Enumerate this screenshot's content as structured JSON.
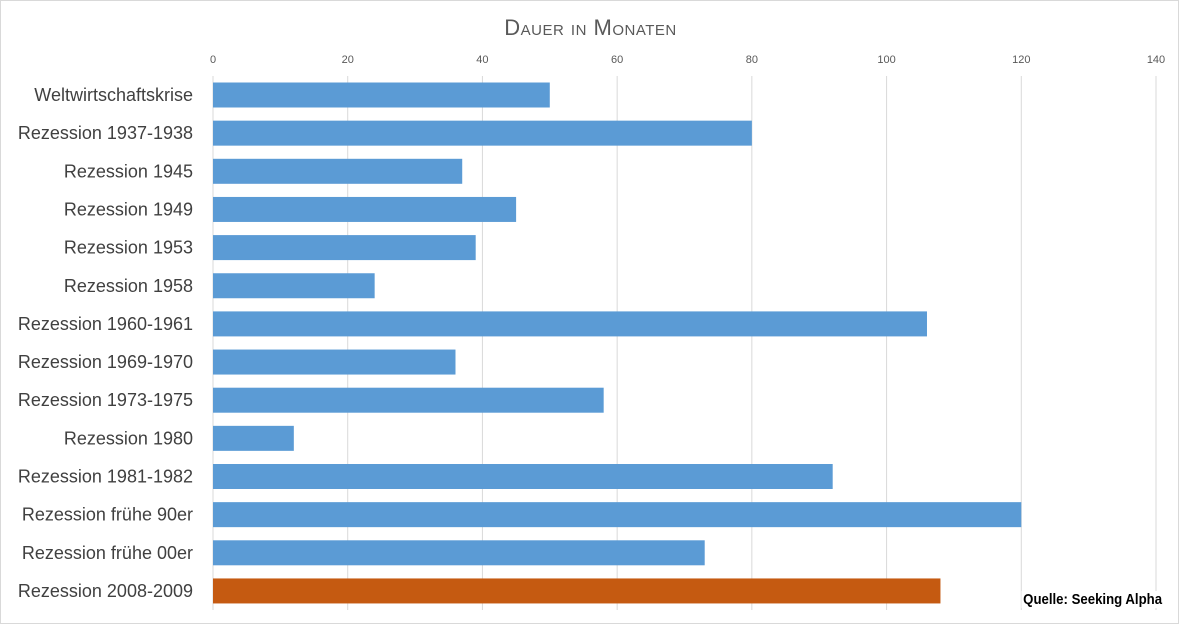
{
  "chart_data": {
    "type": "bar",
    "orientation": "horizontal",
    "title": "Dauer in Monaten",
    "xlabel": "",
    "ylabel": "",
    "xlim": [
      0,
      140
    ],
    "xticks": [
      0,
      20,
      40,
      60,
      80,
      100,
      120,
      140
    ],
    "axis_position": "top",
    "grid": true,
    "legend": "none",
    "categories": [
      "Weltwirtschaftskrise",
      "Rezession 1937-1938",
      "Rezession 1945",
      "Rezession 1949",
      "Rezession 1953",
      "Rezession 1958",
      "Rezession 1960-1961",
      "Rezession 1969-1970",
      "Rezession 1973-1975",
      "Rezession 1980",
      "Rezession 1981-1982",
      "Rezession frühe 90er",
      "Rezession frühe 00er",
      "Rezession 2008-2009"
    ],
    "values": [
      50,
      80,
      37,
      45,
      39,
      24,
      106,
      36,
      58,
      12,
      92,
      120,
      73,
      108
    ],
    "bar_color": "#5b9bd5",
    "highlight_color": "#c55a11",
    "highlight_category": "Rezession 2008-2009",
    "gridline_color": "#d9d9d9"
  },
  "source": "Quelle: Seeking Alpha"
}
